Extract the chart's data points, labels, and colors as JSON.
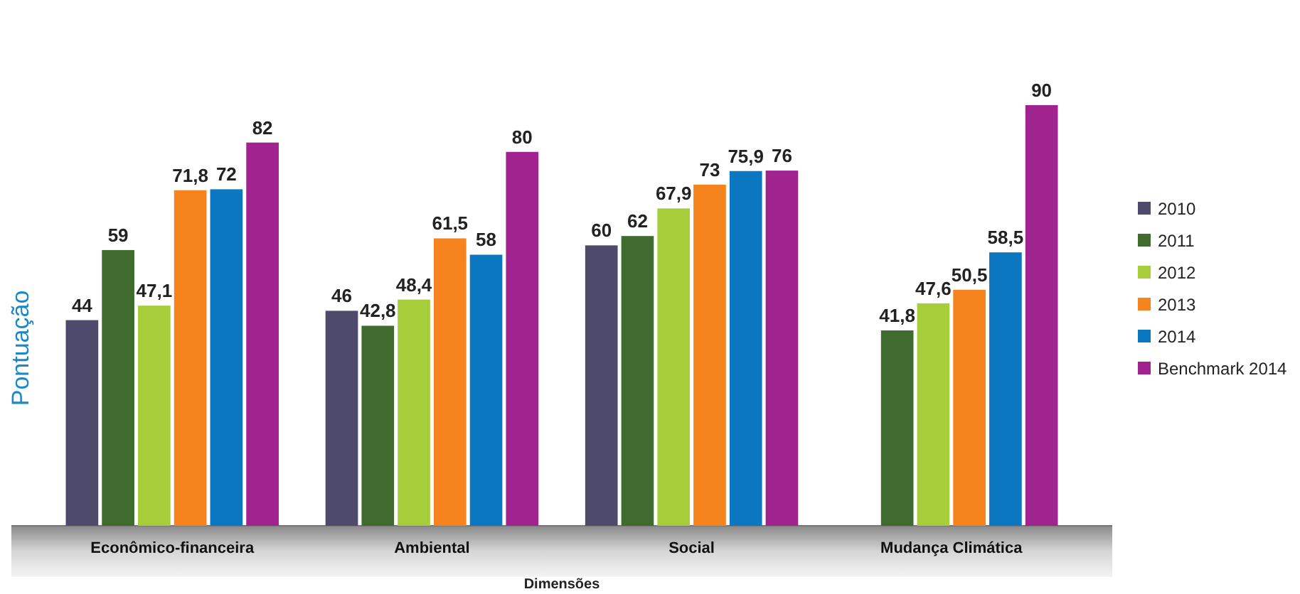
{
  "chart_data": {
    "type": "bar",
    "xlabel": "Dimensões",
    "ylabel": "Pontuação",
    "categories": [
      "Econômico-financeira",
      "Ambiental",
      "Social",
      "Mudança Climática"
    ],
    "series": [
      {
        "name": "2010",
        "color": "#4e4a6c",
        "values": [
          44,
          46,
          60,
          null
        ],
        "value_labels": [
          "44",
          "46",
          "60",
          null
        ]
      },
      {
        "name": "2011",
        "color": "#3f6b2f",
        "values": [
          59,
          42.8,
          62,
          41.8
        ],
        "value_labels": [
          "59",
          "42,8",
          "62",
          "41,8"
        ]
      },
      {
        "name": "2012",
        "color": "#a6cd3a",
        "values": [
          47.1,
          48.4,
          67.9,
          47.6
        ],
        "value_labels": [
          "47,1",
          "48,4",
          "67,9",
          "47,6"
        ]
      },
      {
        "name": "2013",
        "color": "#f5841f",
        "values": [
          71.8,
          61.5,
          73,
          50.5
        ],
        "value_labels": [
          "71,8",
          "61,5",
          "73",
          "50,5"
        ]
      },
      {
        "name": "2014",
        "color": "#0a77c0",
        "values": [
          72,
          58,
          75.9,
          58.5
        ],
        "value_labels": [
          "72",
          "58",
          "75,9",
          "58,5"
        ]
      },
      {
        "name": "Benchmark 2014",
        "color": "#a0238f",
        "values": [
          82,
          80,
          76,
          90
        ],
        "value_labels": [
          "82",
          "80",
          "76",
          "90"
        ]
      }
    ],
    "legend": "right"
  }
}
